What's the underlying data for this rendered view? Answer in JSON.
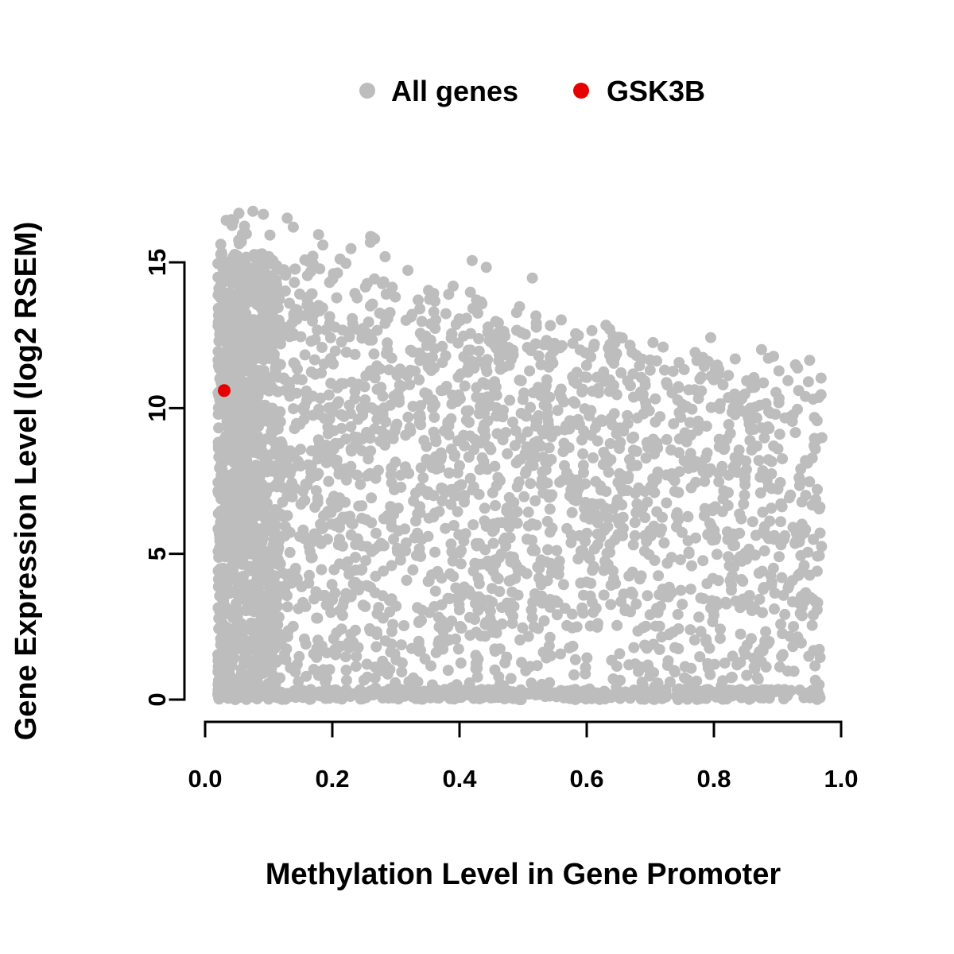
{
  "legend": {
    "items": [
      {
        "label": "All genes",
        "color": "#bdbdbd"
      },
      {
        "label": "GSK3B",
        "color": "#e60000"
      }
    ]
  },
  "chart_data": {
    "type": "scatter",
    "title": "",
    "xlabel": "Methylation Level in Gene Promoter",
    "ylabel": "Gene Expression Level (log2 RSEM)",
    "xlim": [
      0,
      1
    ],
    "ylim": [
      0,
      17.2
    ],
    "x_ticks": [
      "0.0",
      "0.2",
      "0.4",
      "0.6",
      "0.8",
      "1.0"
    ],
    "x_tick_values": [
      0,
      0.2,
      0.4,
      0.6,
      0.8,
      1.0
    ],
    "y_ticks": [
      "0",
      "5",
      "10",
      "15"
    ],
    "y_tick_values": [
      0,
      5,
      10,
      15
    ],
    "grid": false,
    "legend_position": "top-center",
    "series": [
      {
        "name": "All genes",
        "color": "#bdbdbd",
        "type": "dense-cloud",
        "n": 3590,
        "x_range": [
          0.02,
          0.97
        ],
        "envelope": {
          "y_at_x0": 15.2,
          "slope": -4.3
        },
        "notes": "wedge-shaped dense cloud; very dense vertical band near x=0.05 reaching y=17; dense floor of points along y=0; upper boundary of cloud declines from y=15 at x=0 to y=11 at x=0.95"
      },
      {
        "name": "GSK3B",
        "color": "#e60000",
        "points": [
          [
            0.03,
            10.6
          ]
        ]
      }
    ],
    "generator": {
      "seed": 42,
      "point_radius": 7,
      "x_min": 0.02,
      "x_max": 0.97,
      "envelope": {
        "intercept": 15.2,
        "slope": -4.3,
        "jitter": 0.9
      },
      "clusters": [
        {
          "kind": "main",
          "n": 2400,
          "x_pow": 1.3,
          "y_pow": 0.85
        },
        {
          "kind": "left-band",
          "n": 700,
          "x_center": 0.05,
          "x_spread": 0.05,
          "y_max": 15.3
        },
        {
          "kind": "floor",
          "n": 450,
          "y_max": 0.35
        },
        {
          "kind": "high-outliers",
          "n": 40,
          "y_extra": 1.9,
          "y_cap": 17.1
        }
      ]
    }
  }
}
